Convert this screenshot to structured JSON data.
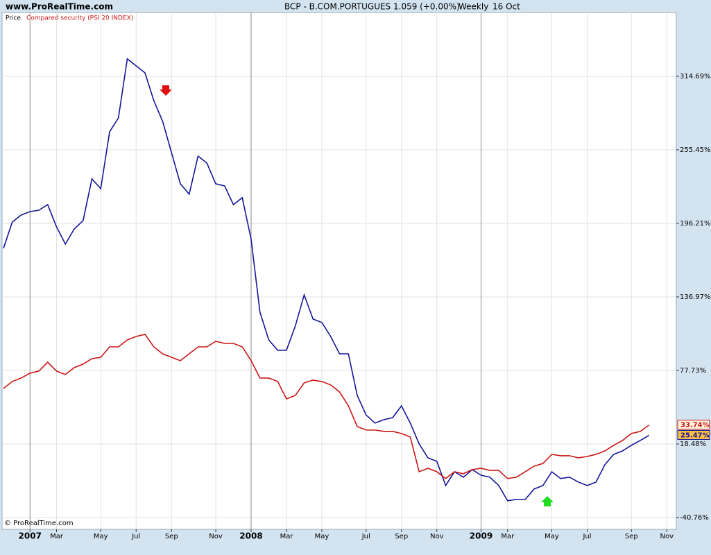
{
  "chart_data": {
    "type": "line",
    "source": "www.ProRealTime.com",
    "title": "BCP - B.COM.PORTUGUES",
    "price": "1.059 (+0.00%)",
    "period": "Weekly",
    "date": "16 Oct",
    "copyright": "© ProRealTime.com",
    "categories": [
      null,
      null,
      null,
      "2007",
      null,
      null,
      "Mar",
      null,
      null,
      null,
      null,
      "May",
      null,
      null,
      null,
      "Jul",
      null,
      null,
      null,
      "Sep",
      null,
      null,
      null,
      null,
      "Nov",
      null,
      null,
      null,
      "2008",
      null,
      null,
      null,
      "Mar",
      null,
      null,
      null,
      "May",
      null,
      null,
      null,
      null,
      "Jul",
      null,
      null,
      null,
      "Sep",
      null,
      null,
      null,
      "Nov",
      null,
      null,
      null,
      null,
      "2009",
      null,
      null,
      "Mar",
      null,
      null,
      null,
      null,
      "May",
      null,
      null,
      null,
      "Jul",
      null,
      null,
      null,
      null,
      "Sep",
      null,
      null,
      null,
      "Nov"
    ],
    "series": [
      {
        "name": "Price",
        "color": "#14149a",
        "values": [
          176.1,
          197.3,
          202.9,
          205.7,
          206.8,
          211.3,
          193.4,
          179.5,
          191.7,
          198.4,
          232.0,
          224.2,
          270.0,
          281.2,
          328.7,
          323.1,
          317.5,
          295.1,
          278.4,
          253.2,
          228.1,
          219.7,
          250.4,
          244.8,
          228.1,
          226.4,
          211.3,
          216.9,
          183.4,
          124.7,
          102.3,
          94.0,
          94.0,
          113.5,
          138.6,
          119.1,
          116.3,
          105.1,
          91.1,
          91.1,
          57.6,
          41.9,
          35.3,
          38.0,
          39.7,
          49.2,
          35.3,
          18.5,
          7.3,
          4.5,
          -15.0,
          -3.9,
          -8.3,
          -2.2,
          -6.7,
          -8.3,
          -15.0,
          -27.3,
          -26.2,
          -26.2,
          -17.8,
          -15.0,
          -3.9,
          -9.4,
          -8.3,
          -12.2,
          -15.0,
          -12.2,
          1.8,
          10.1,
          12.9,
          17.4,
          21.3,
          25.47,
          null,
          null
        ],
        "value_labels": [
          null,
          null,
          null,
          null,
          null,
          null,
          null,
          null,
          null,
          null,
          null,
          null,
          null,
          null,
          null,
          null,
          null,
          null,
          null,
          null,
          null,
          null,
          null,
          null,
          null,
          null,
          null,
          null,
          null,
          null,
          null,
          null,
          null,
          null,
          null,
          null,
          null,
          null,
          null,
          null,
          null,
          null,
          null,
          null,
          null,
          null,
          null,
          null,
          null,
          null,
          null,
          null,
          null,
          null,
          null,
          null,
          null,
          null,
          null,
          null,
          null,
          null,
          null,
          null,
          null,
          null,
          null,
          null,
          null,
          null,
          null,
          null,
          null,
          "25.47%",
          null,
          null
        ],
        "label_fill": "#ffc040"
      },
      {
        "name": "Compared security (PSI 20 INDEX)",
        "color": "#cc1515",
        "values": [
          63.2,
          68.8,
          71.6,
          75.5,
          77.2,
          84.4,
          77.2,
          74.4,
          80.0,
          82.8,
          87.2,
          88.3,
          96.7,
          96.7,
          102.3,
          105.1,
          106.8,
          96.7,
          91.1,
          88.3,
          85.6,
          91.1,
          96.7,
          96.7,
          101.2,
          99.5,
          99.5,
          96.7,
          85.6,
          71.6,
          71.6,
          68.8,
          54.8,
          57.6,
          67.7,
          69.9,
          68.8,
          66.0,
          60.4,
          49.2,
          32.5,
          29.7,
          29.7,
          28.6,
          28.6,
          26.9,
          24.1,
          -3.9,
          -1.1,
          -3.9,
          -9.4,
          -3.9,
          -5.5,
          -2.2,
          -1.1,
          -2.8,
          -2.8,
          -9.4,
          -8.3,
          -3.9,
          0.6,
          2.8,
          10.1,
          9.0,
          9.0,
          7.3,
          8.4,
          10.1,
          12.9,
          17.4,
          21.3,
          26.9,
          28.6,
          33.74,
          null,
          null
        ],
        "value_labels": [
          null,
          null,
          null,
          null,
          null,
          null,
          null,
          null,
          null,
          null,
          null,
          null,
          null,
          null,
          null,
          null,
          null,
          null,
          null,
          null,
          null,
          null,
          null,
          null,
          null,
          null,
          null,
          null,
          null,
          null,
          null,
          null,
          null,
          null,
          null,
          null,
          null,
          null,
          null,
          null,
          null,
          null,
          null,
          null,
          null,
          null,
          null,
          null,
          null,
          null,
          null,
          null,
          null,
          null,
          null,
          null,
          null,
          null,
          null,
          null,
          null,
          null,
          null,
          null,
          null,
          null,
          null,
          null,
          null,
          null,
          null,
          null,
          null,
          "33.74%",
          null,
          null
        ],
        "label_fill": "#fff4e0"
      }
    ],
    "ylim": [
      -50.3,
      366.1
    ],
    "yticks": [
      {
        "value": -40.76,
        "label": "-40.76%"
      },
      {
        "value": 18.48,
        "label": "18.48%"
      },
      {
        "value": 77.73,
        "label": "77.73%"
      },
      {
        "value": 136.97,
        "label": "136.97%"
      },
      {
        "value": 196.21,
        "label": "196.21%"
      },
      {
        "value": 255.45,
        "label": "255.45%"
      },
      {
        "value": 314.69,
        "label": "314.69%"
      }
    ],
    "grid": true,
    "y_axis_side": "right"
  }
}
